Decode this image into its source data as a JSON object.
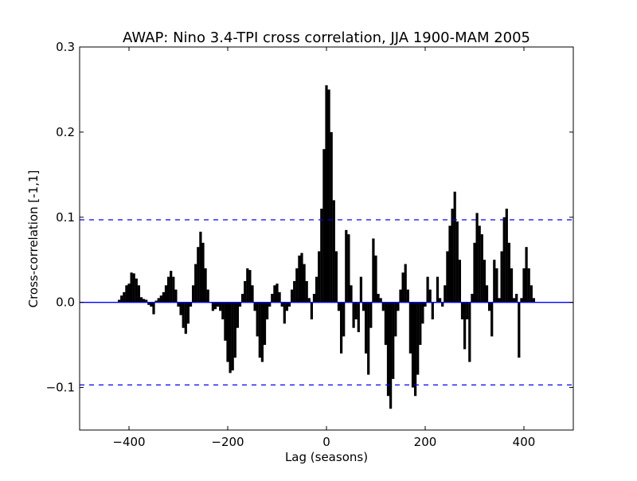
{
  "chart_data": {
    "type": "xcorr",
    "title": "AWAP: Nino 3.4-TPI cross correlation, JJA 1900-MAM 2005",
    "xlabel": "Lag (seasons)",
    "ylabel": "Cross-correlation [-1,1]",
    "x": [
      -420,
      -415,
      -410,
      -405,
      -400,
      -395,
      -390,
      -385,
      -380,
      -375,
      -370,
      -365,
      -360,
      -355,
      -350,
      -345,
      -340,
      -335,
      -330,
      -325,
      -320,
      -315,
      -310,
      -305,
      -300,
      -295,
      -290,
      -285,
      -280,
      -275,
      -270,
      -265,
      -260,
      -255,
      -250,
      -245,
      -240,
      -235,
      -230,
      -225,
      -220,
      -215,
      -210,
      -205,
      -200,
      -195,
      -190,
      -185,
      -180,
      -175,
      -170,
      -165,
      -160,
      -155,
      -150,
      -145,
      -140,
      -135,
      -130,
      -125,
      -120,
      -115,
      -110,
      -105,
      -100,
      -95,
      -90,
      -85,
      -80,
      -75,
      -70,
      -65,
      -60,
      -55,
      -50,
      -45,
      -40,
      -35,
      -30,
      -25,
      -20,
      -15,
      -10,
      -5,
      0,
      5,
      10,
      15,
      20,
      25,
      30,
      35,
      40,
      45,
      50,
      55,
      60,
      65,
      70,
      75,
      80,
      85,
      90,
      95,
      100,
      105,
      110,
      115,
      120,
      125,
      130,
      135,
      140,
      145,
      150,
      155,
      160,
      165,
      170,
      175,
      180,
      185,
      190,
      195,
      200,
      205,
      210,
      215,
      220,
      225,
      230,
      235,
      240,
      245,
      250,
      255,
      260,
      265,
      270,
      275,
      280,
      285,
      290,
      295,
      300,
      305,
      310,
      315,
      320,
      325,
      330,
      335,
      340,
      345,
      350,
      355,
      360,
      365,
      370,
      375,
      380,
      385,
      390,
      395,
      400,
      405,
      410,
      415,
      420
    ],
    "values": [
      0.003,
      0.008,
      0.012,
      0.02,
      0.022,
      0.035,
      0.034,
      0.028,
      0.02,
      0.006,
      0.004,
      0.003,
      -0.003,
      -0.005,
      -0.014,
      0.002,
      0.005,
      0.008,
      0.012,
      0.02,
      0.03,
      0.037,
      0.03,
      0.015,
      -0.005,
      -0.015,
      -0.03,
      -0.037,
      -0.025,
      -0.005,
      0.02,
      0.045,
      0.065,
      0.083,
      0.07,
      0.04,
      0.015,
      0.0,
      -0.01,
      -0.008,
      -0.005,
      -0.01,
      -0.02,
      -0.045,
      -0.07,
      -0.083,
      -0.08,
      -0.065,
      -0.03,
      -0.005,
      0.01,
      0.025,
      0.04,
      0.038,
      0.02,
      -0.01,
      -0.04,
      -0.065,
      -0.07,
      -0.05,
      -0.02,
      -0.005,
      0.01,
      0.02,
      0.022,
      0.012,
      -0.005,
      -0.025,
      -0.01,
      -0.005,
      0.015,
      0.025,
      0.04,
      0.055,
      0.058,
      0.045,
      0.025,
      0.005,
      -0.02,
      0.01,
      0.03,
      0.06,
      0.11,
      0.18,
      0.255,
      0.25,
      0.2,
      0.12,
      0.06,
      -0.01,
      -0.06,
      -0.04,
      0.085,
      0.08,
      0.02,
      -0.03,
      -0.02,
      -0.035,
      0.03,
      -0.01,
      -0.06,
      -0.085,
      -0.03,
      0.075,
      0.055,
      0.01,
      0.005,
      -0.01,
      -0.05,
      -0.11,
      -0.125,
      -0.09,
      -0.04,
      -0.01,
      0.015,
      0.035,
      0.045,
      0.015,
      -0.06,
      -0.1,
      -0.11,
      -0.085,
      -0.05,
      -0.025,
      -0.005,
      0.03,
      0.015,
      -0.02,
      0.0,
      0.03,
      0.005,
      -0.005,
      0.02,
      0.06,
      0.09,
      0.11,
      0.13,
      0.095,
      0.05,
      -0.02,
      -0.055,
      -0.02,
      -0.07,
      0.01,
      0.07,
      0.105,
      0.09,
      0.08,
      0.05,
      0.02,
      -0.01,
      -0.04,
      0.05,
      0.04,
      0.005,
      0.06,
      0.1,
      0.11,
      0.07,
      0.04,
      0.005,
      0.01,
      -0.065,
      0.005,
      0.04,
      0.065,
      0.04,
      0.02,
      0.005
    ],
    "color": "#000000",
    "baseline": 0,
    "baseline_color": "#0000ff",
    "conf_levels": [
      0.097,
      -0.097
    ],
    "conf_color": "#0000ff",
    "xlim": [
      -500,
      500
    ],
    "xticks": [
      {
        "value": -400,
        "label": "−400"
      },
      {
        "value": -200,
        "label": "−200"
      },
      0,
      200,
      400
    ],
    "ylim": [
      -0.15,
      0.3
    ],
    "yticks": [
      {
        "value": -0.1,
        "label": "−0.1"
      },
      {
        "value": 0.0,
        "label": "0.0"
      },
      0.1,
      0.2,
      0.3
    ],
    "grid": false
  }
}
